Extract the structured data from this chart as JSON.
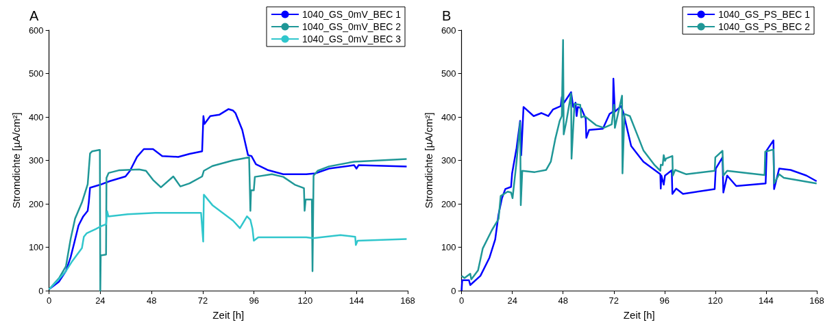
{
  "chart_data": [
    {
      "type": "line",
      "title": "A",
      "xlabel": "Zeit [h]",
      "ylabel": "Stromdichte [µA/cm²]",
      "xlim": [
        0,
        168
      ],
      "xticks": [
        0,
        24,
        48,
        72,
        96,
        120,
        144,
        168
      ],
      "ylim": [
        0,
        600
      ],
      "yticks": [
        0,
        100,
        200,
        300,
        400,
        500,
        600
      ],
      "grid": false,
      "legend": "top right",
      "marker": "none",
      "line_style": "solid",
      "series": [
        {
          "name": "1040_GS_0mV_BEC 1",
          "color": "#0000ff",
          "x": [
            0,
            4.7,
            7.9,
            10.1,
            11.7,
            13.8,
            16,
            18.1,
            18.6,
            19.2,
            24,
            28.3,
            35.8,
            37.9,
            41.2,
            44.4,
            48.7,
            53,
            60.5,
            65.8,
            71.7,
            72.3,
            72.8,
            75.5,
            79.7,
            84,
            86.1,
            87.3,
            90.5,
            93.2,
            94.8,
            96.9,
            102.3,
            109.7,
            120.5,
            124.7,
            131.1,
            142.9,
            144,
            145,
            167.5
          ],
          "values": [
            3,
            21,
            45,
            77,
            108,
            150,
            171,
            184,
            203,
            237,
            244,
            252,
            263,
            276,
            308,
            326,
            326,
            310,
            308,
            315,
            321,
            402,
            384,
            402,
            405,
            418,
            415,
            409,
            370,
            312,
            310,
            291,
            278,
            268,
            268,
            270,
            281,
            289,
            281,
            289,
            286
          ]
        },
        {
          "name": "1040_GS_0mV_BEC 2",
          "color": "#1f9797",
          "x": [
            0,
            4.7,
            7.9,
            10.1,
            12.2,
            15.4,
            18.1,
            19.2,
            20.2,
            23.5,
            23.8,
            24,
            24.2,
            26.7,
            26.9,
            27.9,
            32.6,
            42.2,
            45.4,
            48.7,
            52.4,
            58.2,
            61.5,
            65.8,
            71.7,
            72.5,
            76.5,
            86.2,
            93.7,
            94.3,
            94.6,
            95.9,
            96.4,
            104.4,
            109.7,
            115.1,
            119.4,
            119.7,
            120.2,
            123.1,
            123.4,
            123.9,
            125.8,
            131.1,
            142.9,
            167.5
          ],
          "values": [
            3,
            29,
            56,
            119,
            166,
            203,
            245,
            316,
            321,
            324,
            324,
            0,
            81,
            83,
            260,
            271,
            277,
            279,
            276,
            255,
            238,
            263,
            240,
            247,
            263,
            276,
            287,
            300,
            307,
            184,
            231,
            231,
            262,
            268,
            262,
            244,
            236,
            184,
            210,
            210,
            45,
            265,
            276,
            286,
            297,
            303
          ]
        },
        {
          "name": "1040_GS_0mV_BEC 3",
          "color": "#30c6cc",
          "x": [
            0,
            4.7,
            7.9,
            10.6,
            15.4,
            16.3,
            17.6,
            21.9,
            24.2,
            26.7,
            27.2,
            27.8,
            36.9,
            49.7,
            71.2,
            72.2,
            72.5,
            76.5,
            86.2,
            89.4,
            92.7,
            94.3,
            95.3,
            95.9,
            98,
            120.5,
            123.7,
            136.5,
            143.4,
            143.7,
            144.5,
            167.5
          ],
          "values": [
            3,
            27,
            45,
            66,
            98,
            124,
            132,
            142,
            148,
            153,
            183,
            171,
            176,
            179,
            179,
            113,
            221,
            197,
            161,
            144,
            171,
            163,
            142,
            115,
            123,
            123,
            121,
            128,
            124,
            105,
            115,
            119
          ]
        }
      ]
    },
    {
      "type": "line",
      "title": "B",
      "xlabel": "Zeit [h]",
      "ylabel": "Stromdichte [µA/cm²]",
      "xlim": [
        0,
        168
      ],
      "xticks": [
        0,
        24,
        48,
        72,
        96,
        120,
        144,
        168
      ],
      "ylim": [
        0,
        600
      ],
      "yticks": [
        0,
        100,
        200,
        300,
        400,
        500,
        600
      ],
      "grid": false,
      "legend": "top right",
      "marker": "none",
      "line_style": "solid",
      "series": [
        {
          "name": "1040_GS_PS_BEC 1",
          "color": "#0000ff",
          "x": [
            0,
            0.3,
            3.5,
            4.1,
            8.9,
            13.2,
            15.9,
            17.5,
            19.1,
            20.7,
            23.4,
            23.9,
            26,
            27.7,
            28.2,
            29.3,
            34.1,
            37.8,
            41,
            43.2,
            46.9,
            47.4,
            48.5,
            51.8,
            52.8,
            53.9,
            54.4,
            55,
            56.6,
            58.7,
            59,
            60.3,
            66.8,
            70,
            71.6,
            71.8,
            72.5,
            75.4,
            76.4,
            80.2,
            83.9,
            86,
            94,
            94.2,
            94.5,
            95.6,
            96.2,
            99.4,
            99.7,
            101.5,
            104.7,
            119.7,
            120.2,
            123.4,
            123.8,
            125.6,
            129.9,
            143.8,
            144.3,
            147.5,
            147.8,
            150.2,
            155.6,
            163.1,
            167.9
          ],
          "values": [
            0,
            24,
            24,
            13,
            34,
            76,
            118,
            176,
            213,
            234,
            239,
            270,
            328,
            391,
            312,
            423,
            402,
            409,
            402,
            417,
            425,
            446,
            433,
            457,
            423,
            433,
            402,
            423,
            420,
            396,
            352,
            370,
            373,
            407,
            412,
            488,
            412,
            425,
            412,
            333,
            310,
            297,
            268,
            235,
            265,
            244,
            265,
            277,
            223,
            235,
            223,
            234,
            281,
            307,
            226,
            265,
            241,
            247,
            323,
            346,
            234,
            281,
            278,
            265,
            252
          ]
        },
        {
          "name": "1040_GS_PS_BEC 2",
          "color": "#1f9797",
          "x": [
            0,
            1.4,
            4.1,
            4.6,
            7.8,
            10,
            14.3,
            17.5,
            18.5,
            21.8,
            23.4,
            24.1,
            26,
            27.7,
            28,
            28.7,
            34.6,
            40,
            42.2,
            44.3,
            46.4,
            47.4,
            48,
            48.3,
            49.6,
            51.8,
            52,
            53.4,
            56.1,
            56.6,
            58.2,
            63.6,
            67.3,
            71,
            72.1,
            72.5,
            75.9,
            76.1,
            77,
            79.6,
            83.9,
            86,
            91.3,
            94,
            94.2,
            95.1,
            95.6,
            96.2,
            96.7,
            99.7,
            99.9,
            101,
            106.3,
            119.7,
            120,
            123.4,
            123.8,
            125.6,
            143.3,
            143.6,
            147.5,
            147.8,
            150.2,
            152.4,
            167.9
          ],
          "values": [
            34,
            29,
            39,
            26,
            47,
            97,
            139,
            165,
            218,
            228,
            226,
            213,
            297,
            388,
            197,
            276,
            273,
            278,
            297,
            349,
            391,
            402,
            577,
            360,
            391,
            454,
            304,
            430,
            428,
            399,
            402,
            381,
            375,
            383,
            428,
            375,
            449,
            270,
            407,
            402,
            349,
            323,
            289,
            276,
            290,
            289,
            312,
            299,
            304,
            310,
            265,
            278,
            268,
            276,
            307,
            322,
            265,
            276,
            266,
            320,
            325,
            247,
            268,
            260,
            247
          ]
        }
      ]
    }
  ]
}
